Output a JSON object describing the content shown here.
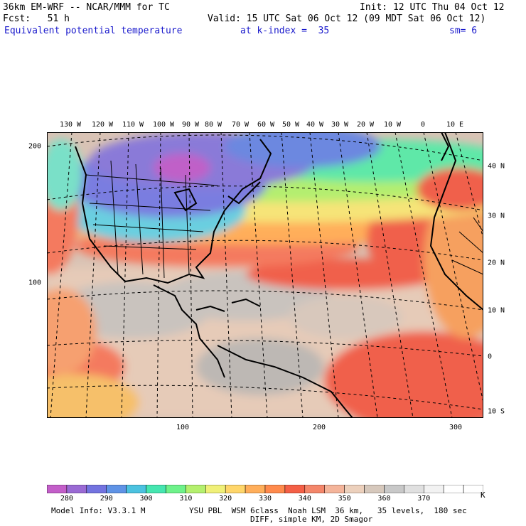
{
  "header": {
    "model": "36km EM-WRF -- NCAR/MMM for TC",
    "init": "Init: 12 UTC Thu 04 Oct 12",
    "fcst": "Fcst:   51 h",
    "valid": "Valid: 15 UTC Sat 06 Oct 12 (09 MDT Sat 06 Oct 12)",
    "field": "Equivalent potential temperature",
    "level": "at k-index =  35",
    "smooth": "sm= 6"
  },
  "lon_labels": [
    "130 W",
    "120 W",
    "110 W",
    "100 W",
    "90 W",
    "80 W",
    "70 W",
    "60 W",
    "50 W",
    "40 W",
    "30 W",
    "20 W",
    "10 W",
    "0",
    "10 E"
  ],
  "lat_labels": [
    "40 N",
    "30 N",
    "20 N",
    "10 N",
    "0",
    "10 S"
  ],
  "grid_y_labels": [
    "200",
    "100"
  ],
  "grid_x_labels": [
    "100",
    "200",
    "300"
  ],
  "colorbar": {
    "labels": [
      "280",
      "290",
      "300",
      "310",
      "320",
      "330",
      "340",
      "350",
      "360",
      "370"
    ],
    "unit": "K",
    "colors": [
      "#c35ec9",
      "#9a6ad4",
      "#7373e0",
      "#5f93e6",
      "#4bc2e0",
      "#45e6b0",
      "#6ef28a",
      "#b4f06e",
      "#f0f078",
      "#ffd66a",
      "#ffae5a",
      "#ff8a4c",
      "#f45f46",
      "#f4866a",
      "#f4b49a",
      "#ecd0bc",
      "#d6c8bc",
      "#c8c8c8",
      "#e0e0e0",
      "#f2f2f2",
      "#ffffff",
      "#ffffff"
    ]
  },
  "footer": {
    "model_info": "Model Info: V3.3.1 M",
    "physics": "YSU PBL  WSM 6class  Noah LSM  36 km,   35 levels,  180 sec",
    "diff": "DIFF, simple KM, 2D Smagor"
  }
}
